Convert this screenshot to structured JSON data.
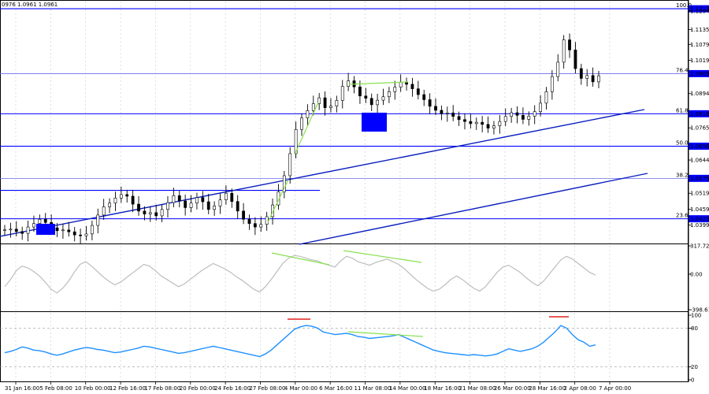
{
  "header": {
    "ohlc_text": "0976 1.0961 1.0961"
  },
  "colors": {
    "candle": "#000000",
    "level_line": "#0000ff",
    "level_line_light": "#6b6bf0",
    "trend_line": "#0a1fbf",
    "divergence": "#88e04f",
    "cci_line": "#bdbdbd",
    "rsi_line": "#1e90ff",
    "rsi_peak_mark": "#e02020",
    "marker_box": "#0000ff",
    "price_label_bg": "#0000ff",
    "price_label_text": "#ffffff"
  },
  "chart_data": [
    {
      "type": "candlestick",
      "title": "",
      "ylim": [
        1.033,
        1.124
      ],
      "price_axis_ticks": [
        "1.1204",
        "1.1135",
        "1.1079",
        "1.1019",
        "1.0894",
        "1.0765",
        "1.0644",
        "1.0519",
        "1.0459",
        "1.0399"
      ],
      "fib_levels": [
        {
          "name": "100.0",
          "value": 1.1213,
          "label": "1.1213"
        },
        {
          "name": "76.4",
          "value": 1.0969,
          "label": "1.0969"
        },
        {
          "name": "61.8",
          "value": 1.0818,
          "label": "1.0818"
        },
        {
          "name": "50.0",
          "value": 1.0696,
          "label": "1.0696"
        },
        {
          "name": "38.2",
          "value": 1.0575,
          "label": "1.0575"
        },
        {
          "name": "23.6",
          "value": 1.0423,
          "label": "1.0423"
        }
      ],
      "extra_level": 1.053,
      "close_series": [
        1.0382,
        1.0384,
        1.0375,
        1.0368,
        1.0392,
        1.0405,
        1.0421,
        1.0409,
        1.0389,
        1.0378,
        1.0381,
        1.0374,
        1.0362,
        1.0359,
        1.0366,
        1.0398,
        1.0437,
        1.0468,
        1.0482,
        1.0501,
        1.0514,
        1.0508,
        1.0478,
        1.0452,
        1.0441,
        1.0446,
        1.0434,
        1.0458,
        1.0484,
        1.051,
        1.049,
        1.0465,
        1.0482,
        1.0503,
        1.0487,
        1.0458,
        1.0471,
        1.0494,
        1.0519,
        1.0488,
        1.0452,
        1.0421,
        1.0405,
        1.0392,
        1.0402,
        1.0431,
        1.0475,
        1.0524,
        1.0585,
        1.0668,
        1.0759,
        1.0802,
        1.083,
        1.0856,
        1.0878,
        1.0841,
        1.0847,
        1.0868,
        1.0921,
        1.0942,
        1.0919,
        1.0885,
        1.0876,
        1.0852,
        1.0869,
        1.0882,
        1.0901,
        1.0918,
        1.0936,
        1.0929,
        1.0912,
        1.089,
        1.0871,
        1.0846,
        1.0831,
        1.0818,
        1.0821,
        1.0808,
        1.0796,
        1.0789,
        1.0781,
        1.0786,
        1.0778,
        1.0764,
        1.0773,
        1.0789,
        1.0808,
        1.0822,
        1.0812,
        1.0797,
        1.0809,
        1.0826,
        1.0858,
        1.0901,
        1.0958,
        1.1012,
        1.1096,
        1.1058,
        1.0988,
        1.0951,
        1.0962,
        1.0938,
        1.0961
      ],
      "x_tick_labels": [
        "31 Jan 16:00",
        "5 Feb 08:00",
        "10 Feb 00:00",
        "12 Feb 16:00",
        "17 Feb 08:00",
        "20 Feb 00:00",
        "24 Feb 16:00",
        "27 Feb 08:00",
        "4 Mar 00:00",
        "6 Mar 16:00",
        "11 Mar 08:00",
        "14 Mar 00:00",
        "18 Mar 16:00",
        "21 Mar 08:00",
        "26 Mar 00:00",
        "28 Mar 16:00",
        "2 Apr 08:00",
        "7 Apr 00:00"
      ],
      "annotations": [
        "support trend line",
        "parallel trend line",
        "horizontal resistance",
        "two marker boxes",
        "green divergence lines"
      ]
    },
    {
      "type": "line",
      "title": "",
      "axis_ticks": [
        "317.7217",
        "0.00",
        "-398.612"
      ],
      "ylim": [
        -398.612,
        317.7217
      ],
      "values": [
        -140,
        -60,
        40,
        90,
        70,
        30,
        -20,
        -90,
        -170,
        -210,
        -160,
        -80,
        20,
        110,
        140,
        90,
        30,
        -30,
        -80,
        -120,
        -90,
        -40,
        10,
        60,
        110,
        90,
        40,
        -20,
        -60,
        -100,
        -140,
        -110,
        -60,
        -10,
        40,
        80,
        120,
        90,
        60,
        20,
        -30,
        -70,
        -120,
        -170,
        -200,
        -140,
        -60,
        30,
        120,
        180,
        210,
        200,
        180,
        160,
        150,
        120,
        100,
        80,
        150,
        200,
        180,
        140,
        120,
        100,
        130,
        150,
        170,
        140,
        110,
        60,
        0,
        -60,
        -110,
        -160,
        -190,
        -170,
        -120,
        -60,
        -20,
        -60,
        -110,
        -160,
        -190,
        -140,
        -60,
        20,
        80,
        100,
        60,
        20,
        -40,
        -90,
        -130,
        -80,
        0,
        80,
        160,
        200,
        170,
        120,
        70,
        20,
        -10
      ]
    },
    {
      "type": "line",
      "title": "",
      "axis_ticks": [
        "100",
        "80",
        "20",
        "0"
      ],
      "ylim": [
        0,
        100
      ],
      "levels": [
        20,
        80
      ],
      "values": [
        42,
        44,
        47,
        51,
        49,
        46,
        45,
        43,
        40,
        38,
        40,
        43,
        46,
        48,
        50,
        49,
        47,
        46,
        44,
        42,
        43,
        45,
        47,
        49,
        52,
        51,
        49,
        47,
        45,
        43,
        41,
        42,
        44,
        46,
        48,
        50,
        52,
        50,
        48,
        46,
        44,
        42,
        40,
        38,
        36,
        40,
        46,
        54,
        62,
        70,
        78,
        82,
        84,
        83,
        80,
        74,
        72,
        70,
        71,
        72,
        70,
        67,
        66,
        64,
        65,
        66,
        67,
        68,
        70,
        66,
        62,
        58,
        54,
        50,
        46,
        44,
        42,
        41,
        40,
        39,
        38,
        39,
        38,
        37,
        38,
        40,
        44,
        48,
        46,
        44,
        46,
        48,
        52,
        58,
        66,
        74,
        84,
        80,
        70,
        62,
        58,
        52,
        54
      ]
    }
  ]
}
